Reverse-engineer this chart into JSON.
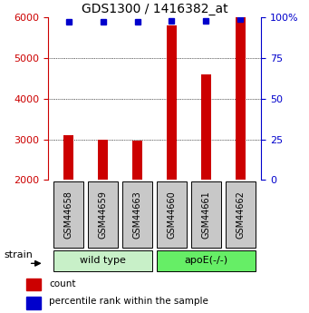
{
  "title": "GDS1300 / 1416382_at",
  "samples": [
    "GSM44658",
    "GSM44659",
    "GSM44663",
    "GSM44660",
    "GSM44661",
    "GSM44662"
  ],
  "counts": [
    3100,
    3000,
    2960,
    5800,
    4600,
    6000
  ],
  "percentiles": [
    97,
    97,
    97,
    98,
    98,
    99
  ],
  "ylim_left": [
    2000,
    6000
  ],
  "ylim_right": [
    0,
    100
  ],
  "left_ticks": [
    2000,
    3000,
    4000,
    5000,
    6000
  ],
  "right_ticks": [
    0,
    25,
    50,
    75,
    100
  ],
  "right_tick_labels": [
    "0",
    "25",
    "50",
    "75",
    "100%"
  ],
  "groups": [
    {
      "label": "wild type",
      "indices": [
        0,
        1,
        2
      ],
      "color": "#c8f0c8"
    },
    {
      "label": "apoE(-/-)",
      "indices": [
        3,
        4,
        5
      ],
      "color": "#66ee66"
    }
  ],
  "bar_color": "#cc0000",
  "dot_color": "#0000cc",
  "bar_width": 0.3,
  "group_label": "strain",
  "legend_bar_label": "count",
  "legend_dot_label": "percentile rank within the sample",
  "background_color": "#ffffff",
  "axis_left_color": "#cc0000",
  "axis_right_color": "#0000cc",
  "gray_box_color": "#c8c8c8"
}
